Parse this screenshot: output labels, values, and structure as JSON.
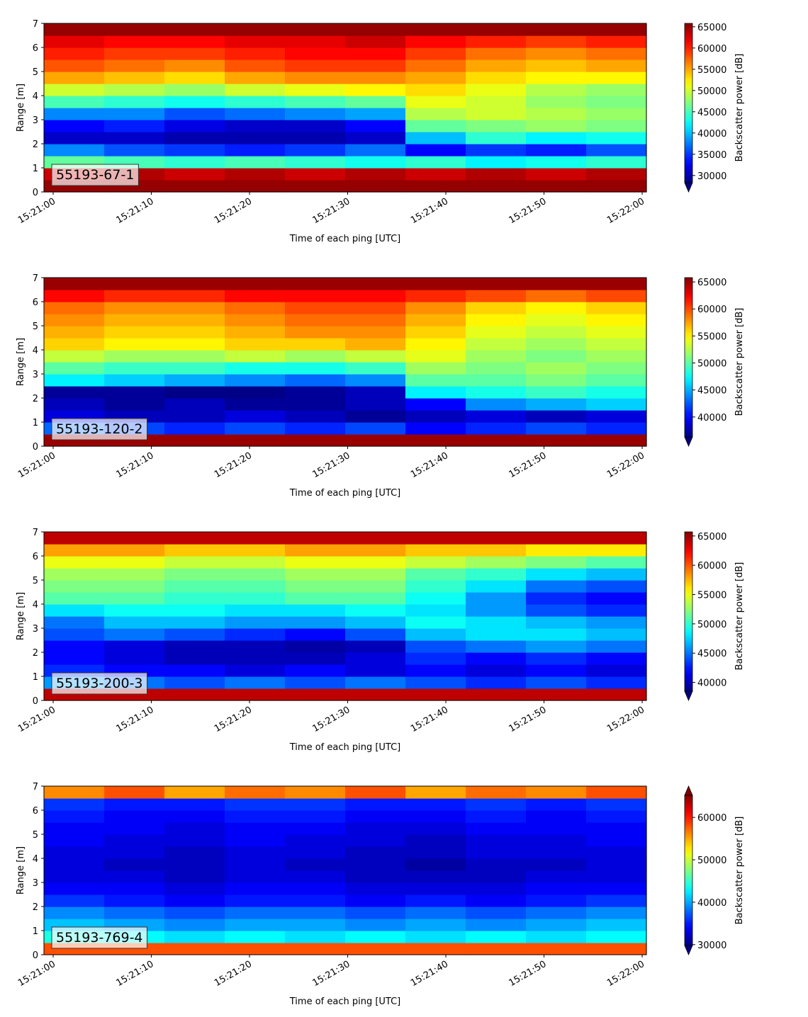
{
  "chart_data": [
    {
      "type": "heatmap",
      "label": "55193-67-1",
      "xlabel": "Time of each ping [UTC]",
      "ylabel": "Range [m]",
      "colorbar_label": "Backscatter power [dB]",
      "colormap": "jet",
      "extend": "min",
      "xlim": [
        "15:20:59.06",
        "15:22:00.43"
      ],
      "xticks": [
        "15:21:00",
        "15:21:10",
        "15:21:20",
        "15:21:30",
        "15:21:40",
        "15:21:50",
        "15:22:00"
      ],
      "ylim": [
        0,
        7
      ],
      "yticks": [
        0,
        1,
        2,
        3,
        4,
        5,
        6,
        7
      ],
      "clim": [
        28300,
        65800
      ],
      "cticks": [
        30000,
        35000,
        40000,
        45000,
        50000,
        55000,
        60000,
        65000
      ],
      "z": [
        [
          65000,
          65000,
          65000,
          65000,
          65000,
          65000,
          65000,
          65000,
          65000,
          65000
        ],
        [
          63000,
          64000,
          63000,
          64000,
          63000,
          64000,
          63000,
          64000,
          63000,
          64000
        ],
        [
          46000,
          45000,
          44000,
          45000,
          44000,
          43000,
          44000,
          42000,
          43000,
          44000
        ],
        [
          38000,
          36000,
          35000,
          34000,
          35000,
          37000,
          33000,
          35000,
          34000,
          36000
        ],
        [
          31000,
          31000,
          30000,
          30000,
          30000,
          31000,
          40000,
          44000,
          42000,
          43000
        ],
        [
          33000,
          34000,
          32000,
          31000,
          31000,
          33000,
          46000,
          47000,
          48000,
          47000
        ],
        [
          38000,
          38000,
          36000,
          37000,
          38000,
          39000,
          49000,
          50000,
          49000,
          48000
        ],
        [
          45000,
          44000,
          43000,
          44000,
          45000,
          46000,
          51000,
          50000,
          48000,
          47000
        ],
        [
          50000,
          49000,
          48000,
          50000,
          51000,
          52000,
          53000,
          51000,
          49000,
          48000
        ],
        [
          55000,
          54000,
          53000,
          55000,
          56000,
          56000,
          55000,
          53000,
          52000,
          52000
        ],
        [
          58000,
          57000,
          56000,
          58000,
          59000,
          59000,
          57000,
          55000,
          54000,
          55000
        ],
        [
          60000,
          59000,
          59000,
          60000,
          61000,
          61000,
          59000,
          57000,
          56000,
          57000
        ],
        [
          62000,
          61000,
          61000,
          62000,
          62000,
          63000,
          61000,
          60000,
          59000,
          60000
        ],
        [
          65000,
          65000,
          65000,
          65000,
          65000,
          65000,
          65000,
          65000,
          65000,
          65000
        ]
      ]
    },
    {
      "type": "heatmap",
      "label": "55193-120-2",
      "xlabel": "Time of each ping [UTC]",
      "ylabel": "Range [m]",
      "colorbar_label": "Backscatter power [dB]",
      "colormap": "jet",
      "extend": "min",
      "xlim": [
        "15:20:59.06",
        "15:22:00.43"
      ],
      "xticks": [
        "15:21:00",
        "15:21:10",
        "15:21:20",
        "15:21:30",
        "15:21:40",
        "15:21:50",
        "15:22:00"
      ],
      "ylim": [
        0,
        7
      ],
      "yticks": [
        0,
        1,
        2,
        3,
        4,
        5,
        6,
        7
      ],
      "clim": [
        36300,
        65800
      ],
      "cticks": [
        40000,
        45000,
        50000,
        55000,
        60000,
        65000
      ],
      "z": [
        [
          65000,
          65000,
          65000,
          65000,
          65000,
          65000,
          65000,
          65000,
          65000,
          65000
        ],
        [
          43000,
          42000,
          41000,
          42000,
          41000,
          42000,
          40000,
          41000,
          42000,
          41000
        ],
        [
          39000,
          38000,
          38000,
          39000,
          38000,
          37000,
          38000,
          39000,
          38000,
          39000
        ],
        [
          38000,
          37000,
          38000,
          37000,
          37000,
          38000,
          40000,
          44000,
          45000,
          46000
        ],
        [
          37000,
          37000,
          36500,
          36500,
          37000,
          38000,
          47000,
          48000,
          49000,
          48000
        ],
        [
          47000,
          46000,
          45000,
          44000,
          43000,
          44000,
          50000,
          50000,
          51000,
          50000
        ],
        [
          50000,
          49000,
          49000,
          48000,
          48000,
          49000,
          52000,
          51000,
          52000,
          51000
        ],
        [
          53000,
          52000,
          52000,
          53000,
          52000,
          53000,
          54000,
          52000,
          51000,
          52000
        ],
        [
          56000,
          55000,
          55000,
          56000,
          56000,
          57000,
          55000,
          53000,
          52000,
          53000
        ],
        [
          57000,
          56000,
          56000,
          57000,
          58000,
          58000,
          56000,
          54000,
          53000,
          54000
        ],
        [
          58000,
          57000,
          57000,
          58000,
          59000,
          59000,
          57000,
          55000,
          54000,
          55000
        ],
        [
          59000,
          58000,
          58000,
          59000,
          60000,
          60000,
          58000,
          56000,
          55000,
          56000
        ],
        [
          62000,
          61000,
          61000,
          62000,
          62000,
          62000,
          61000,
          60000,
          59000,
          60000
        ],
        [
          65000,
          65000,
          65000,
          65000,
          65000,
          65000,
          65000,
          65000,
          65000,
          65000
        ]
      ]
    },
    {
      "type": "heatmap",
      "label": "55193-200-3",
      "xlabel": "Time of each ping [UTC]",
      "ylabel": "Range [m]",
      "colorbar_label": "Backscatter power [dB]",
      "colormap": "jet",
      "extend": "min",
      "xlim": [
        "15:20:59.06",
        "15:22:00.43"
      ],
      "xticks": [
        "15:21:00",
        "15:21:10",
        "15:21:20",
        "15:21:30",
        "15:21:40",
        "15:21:50",
        "15:22:00"
      ],
      "ylim": [
        0,
        7
      ],
      "yticks": [
        0,
        1,
        2,
        3,
        4,
        5,
        6,
        7
      ],
      "clim": [
        38500,
        65700
      ],
      "cticks": [
        40000,
        45000,
        50000,
        55000,
        60000,
        65000
      ],
      "z": [
        [
          64000,
          64000,
          64000,
          64000,
          64000,
          64000,
          64000,
          64000,
          64000,
          64000
        ],
        [
          46000,
          45000,
          44000,
          45000,
          44000,
          45000,
          44000,
          43000,
          44000,
          43000
        ],
        [
          43000,
          42000,
          42000,
          41000,
          42000,
          41000,
          42000,
          41000,
          42000,
          41000
        ],
        [
          42000,
          41000,
          40000,
          40000,
          40000,
          41000,
          43000,
          42000,
          43000,
          42000
        ],
        [
          42000,
          41000,
          40000,
          40000,
          39500,
          40000,
          44000,
          45000,
          46000,
          45000
        ],
        [
          44000,
          45000,
          44000,
          43000,
          42000,
          44000,
          47000,
          48000,
          48000,
          47000
        ],
        [
          45000,
          47000,
          47000,
          46000,
          46000,
          47000,
          49000,
          48000,
          47000,
          46000
        ],
        [
          48000,
          49000,
          49000,
          48000,
          48000,
          49000,
          48000,
          46000,
          44000,
          43000
        ],
        [
          51000,
          51000,
          50000,
          50000,
          51000,
          51000,
          49000,
          46000,
          43000,
          42000
        ],
        [
          52000,
          52000,
          51000,
          51000,
          52000,
          52000,
          50000,
          48000,
          45000,
          44000
        ],
        [
          53000,
          53000,
          52000,
          52000,
          53000,
          53000,
          51000,
          50000,
          48000,
          47000
        ],
        [
          55000,
          55000,
          54000,
          54000,
          55000,
          55000,
          54000,
          53000,
          52000,
          51000
        ],
        [
          58000,
          58000,
          57000,
          57000,
          58000,
          58000,
          57000,
          57000,
          56000,
          56000
        ],
        [
          64000,
          64000,
          64000,
          64000,
          64000,
          64000,
          64000,
          64000,
          64000,
          64000
        ]
      ]
    },
    {
      "type": "heatmap",
      "label": "55193-769-4",
      "xlabel": "Time of each ping [UTC]",
      "ylabel": "Range [m]",
      "colorbar_label": "Backscatter power [dB]",
      "colormap": "jet",
      "extend": "both",
      "xlim": [
        "15:20:59.06",
        "15:22:00.43"
      ],
      "xticks": [
        "15:21:00",
        "15:21:10",
        "15:21:20",
        "15:21:30",
        "15:21:40",
        "15:21:50",
        "15:22:00"
      ],
      "ylim": [
        0,
        7
      ],
      "yticks": [
        0,
        1,
        2,
        3,
        4,
        5,
        6,
        7
      ],
      "clim": [
        29800,
        65200
      ],
      "cticks": [
        30000,
        40000,
        50000,
        60000
      ],
      "z": [
        [
          58000,
          58000,
          58000,
          58000,
          58000,
          58000,
          58000,
          58000,
          58000,
          58000
        ],
        [
          44000,
          43000,
          42000,
          43000,
          42000,
          43000,
          42000,
          43000,
          42000,
          43000
        ],
        [
          41000,
          40000,
          39000,
          40000,
          40000,
          39000,
          40000,
          39000,
          40000,
          41000
        ],
        [
          39000,
          38000,
          37000,
          38000,
          38000,
          37000,
          38000,
          37000,
          38000,
          39000
        ],
        [
          36000,
          35000,
          34000,
          35000,
          35000,
          34000,
          35000,
          34000,
          35000,
          36000
        ],
        [
          34000,
          34000,
          33000,
          34000,
          34000,
          33000,
          33000,
          33000,
          34000,
          34000
        ],
        [
          33000,
          33000,
          32000,
          33000,
          33000,
          32000,
          32000,
          32000,
          33000,
          33000
        ],
        [
          33000,
          32000,
          32000,
          33000,
          32000,
          32000,
          31000,
          32000,
          32000,
          33000
        ],
        [
          33000,
          33000,
          32000,
          33000,
          33000,
          32000,
          32000,
          33000,
          33000,
          33000
        ],
        [
          34000,
          33000,
          33000,
          34000,
          33000,
          33000,
          32000,
          33000,
          33000,
          34000
        ],
        [
          34000,
          34000,
          33000,
          34000,
          34000,
          33000,
          33000,
          34000,
          34000,
          34000
        ],
        [
          35000,
          34000,
          34000,
          35000,
          35000,
          34000,
          34000,
          35000,
          34000,
          35000
        ],
        [
          36000,
          35000,
          35000,
          36000,
          36000,
          35000,
          35000,
          36000,
          35000,
          36000
        ],
        [
          56000,
          58000,
          55000,
          57000,
          56000,
          58000,
          55000,
          57000,
          56000,
          58000
        ]
      ]
    }
  ]
}
